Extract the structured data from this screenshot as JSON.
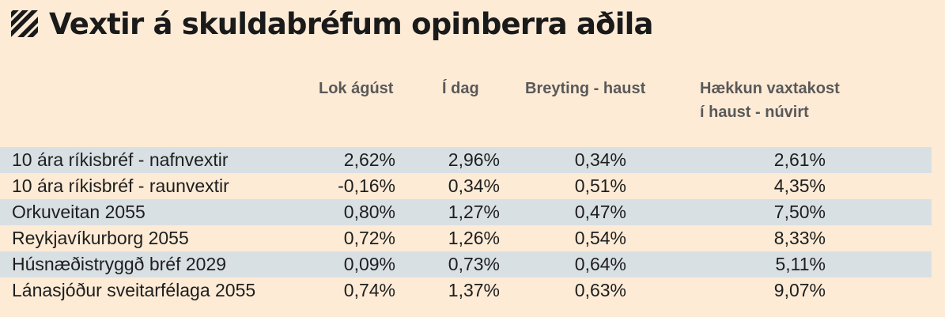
{
  "title": "Vextir á skuldabréfum opinberra aðila",
  "headers": {
    "lok_agust": "Lok ágúst",
    "i_dag": "Í dag",
    "breyting": "Breyting - haust",
    "haekkun_line1": "Hækkun vaxtakost",
    "haekkun_line2": "í haust - núvirt"
  },
  "chart_data": {
    "type": "table",
    "columns": [
      "",
      "Lok ágúst",
      "Í dag",
      "Breyting - haust",
      "Hækkun vaxtakost í haust - núvirt"
    ],
    "rows": [
      {
        "name": "10 ára ríkisbréf - nafnvextir",
        "lok_agust": "2,62%",
        "i_dag": "2,96%",
        "breyting": "0,34%",
        "haekkun": "2,61%"
      },
      {
        "name": "10 ára ríkisbréf - raunvextir",
        "lok_agust": "-0,16%",
        "i_dag": "0,34%",
        "breyting": "0,51%",
        "haekkun": "4,35%"
      },
      {
        "name": "Orkuveitan 2055",
        "lok_agust": "0,80%",
        "i_dag": "1,27%",
        "breyting": "0,47%",
        "haekkun": "7,50%"
      },
      {
        "name": "Reykjavíkurborg 2055",
        "lok_agust": "0,72%",
        "i_dag": "1,26%",
        "breyting": "0,54%",
        "haekkun": "8,33%"
      },
      {
        "name": "Húsnæðistryggð bréf 2029",
        "lok_agust": "0,09%",
        "i_dag": "0,73%",
        "breyting": "0,64%",
        "haekkun": "5,11%"
      },
      {
        "name": "Lánasjóður sveitarfélaga 2055",
        "lok_agust": "0,74%",
        "i_dag": "1,37%",
        "breyting": "0,63%",
        "haekkun": "9,07%"
      }
    ]
  },
  "colors": {
    "background": "#fdebd6",
    "row_shade": "#d9e0e4",
    "header_text": "#595959",
    "body_text": "#1e1e1e"
  }
}
